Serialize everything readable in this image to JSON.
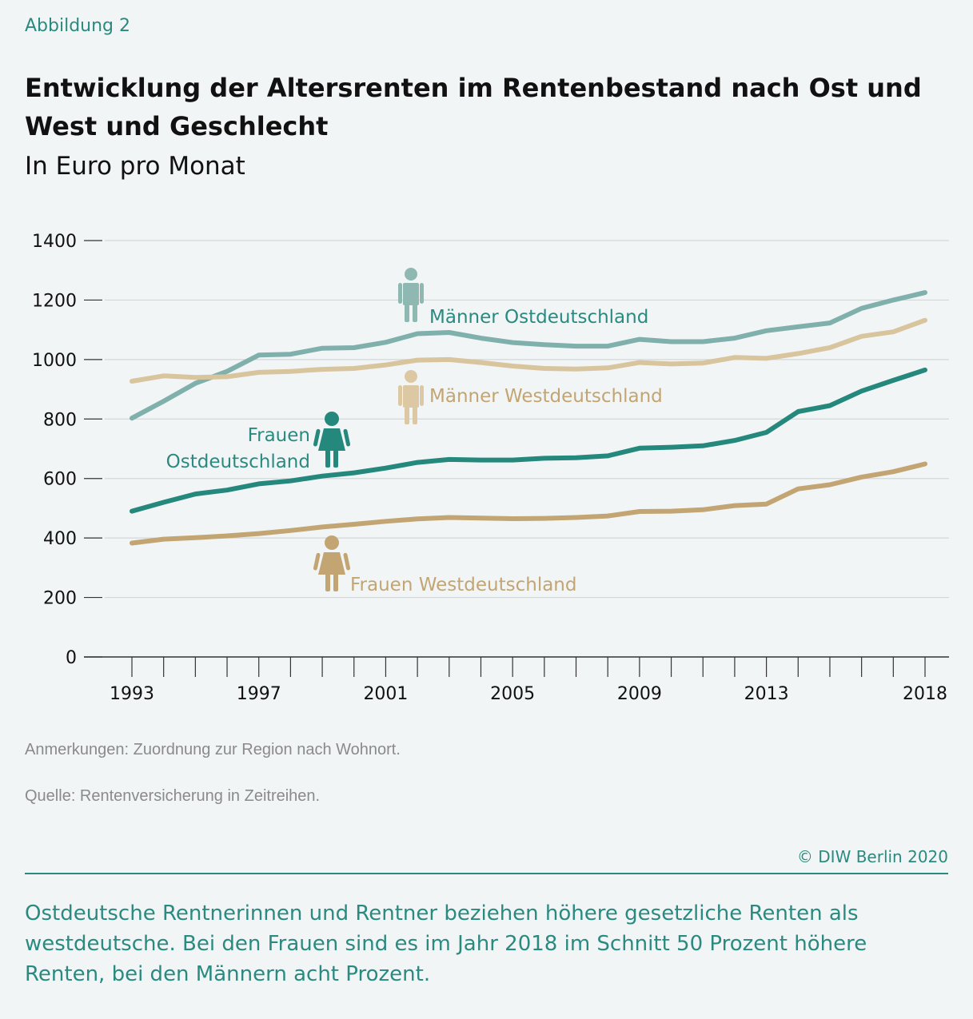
{
  "figure_label": "Abbildung 2",
  "title": "Entwicklung der Altersrenten im Rentenbestand nach Ost und West und Geschlecht",
  "subtitle": "In Euro pro Monat",
  "notes": {
    "anmerkungen": "Anmerkungen: Zuordnung zur Region nach Wohnort.",
    "quelle": "Quelle: Rentenversicherung in Zeitreihen."
  },
  "copyright": "© DIW Berlin 2020",
  "takeaway": "Ostdeutsche Rentnerinnen und Rentner beziehen höhere gesetzliche Renten als westdeutsche. Bei den Frauen sind es im Jahr 2018 im Schnitt 50 Prozent höhere Renten, bei den Männern acht Prozent.",
  "chart_data": {
    "type": "line",
    "xlabel": "",
    "ylabel": "",
    "ylim": [
      0,
      1400
    ],
    "yticks": [
      0,
      200,
      400,
      600,
      800,
      1000,
      1200,
      1400
    ],
    "ytick_labels": [
      "0",
      "200",
      "400",
      "600",
      "800",
      "1000",
      "1200",
      "1400"
    ],
    "x": [
      1993,
      1994,
      1995,
      1996,
      1997,
      1998,
      1999,
      2000,
      2001,
      2002,
      2003,
      2004,
      2005,
      2006,
      2007,
      2008,
      2009,
      2010,
      2011,
      2012,
      2013,
      2014,
      2015,
      2016,
      2017,
      2018
    ],
    "xtick_labels": [
      "1993",
      "1997",
      "2001",
      "2005",
      "2009",
      "2013",
      "2018"
    ],
    "xtick_label_years": [
      1993,
      1997,
      2001,
      2005,
      2009,
      2013,
      2018
    ],
    "grid": true,
    "series": [
      {
        "name": "Männer Ostdeutschland",
        "color": "#7fb0ab",
        "icon": "male-person-icon",
        "values": [
          803,
          860,
          920,
          960,
          1015,
          1018,
          1038,
          1040,
          1058,
          1087,
          1091,
          1072,
          1057,
          1050,
          1045,
          1045,
          1068,
          1060,
          1060,
          1072,
          1097,
          1110,
          1123,
          1172,
          1200,
          1225
        ]
      },
      {
        "name": "Männer Westdeutschland",
        "color": "#d8c59e",
        "icon": "male-person-icon",
        "values": [
          927,
          945,
          940,
          942,
          957,
          960,
          967,
          970,
          982,
          998,
          1000,
          990,
          978,
          970,
          968,
          972,
          990,
          985,
          988,
          1007,
          1004,
          1020,
          1040,
          1078,
          1093,
          1132
        ]
      },
      {
        "name": "Frauen Ostdeutschland",
        "color": "#25887d",
        "icon": "female-person-icon",
        "values": [
          490,
          520,
          548,
          561,
          582,
          592,
          608,
          619,
          635,
          654,
          664,
          662,
          662,
          668,
          670,
          676,
          702,
          705,
          710,
          728,
          755,
          825,
          845,
          894,
          930,
          965
        ]
      },
      {
        "name": "Frauen Westdeutschland",
        "color": "#c2a572",
        "icon": "female-person-icon",
        "values": [
          383,
          396,
          401,
          407,
          415,
          425,
          437,
          446,
          456,
          464,
          469,
          467,
          465,
          466,
          469,
          474,
          489,
          490,
          495,
          509,
          514,
          565,
          579,
          605,
          623,
          649
        ]
      }
    ]
  }
}
